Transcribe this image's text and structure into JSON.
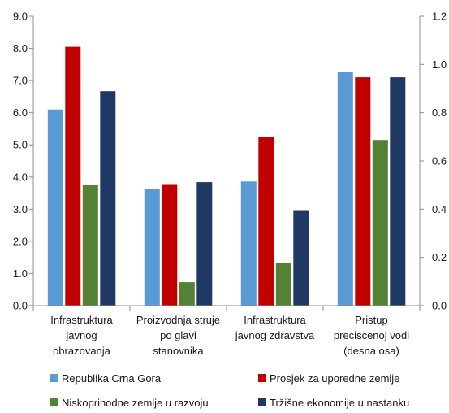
{
  "chart_data": {
    "type": "bar",
    "title": "",
    "xlabel": "",
    "ylabel": "",
    "categories": [
      [
        "Infrastruktura",
        "javnog",
        "obrazovanja"
      ],
      [
        "Proizvodnja struje",
        "po glavi",
        "stanovnika"
      ],
      [
        "Infrastruktura",
        "javnog zdravstva"
      ],
      [
        "Pristup",
        "preciscenoj vodi",
        "(desna osa)"
      ]
    ],
    "series": [
      {
        "name": "Republika Crna Gora",
        "color": "#5b9bd5",
        "values": [
          6.1,
          3.63,
          3.86,
          0.97
        ]
      },
      {
        "name": "Prosjek za uporedne zemlje",
        "color": "#c00000",
        "values": [
          8.05,
          3.78,
          5.25,
          0.947
        ]
      },
      {
        "name": "Niskoprihodne zemlje u razvoju",
        "color": "#548235",
        "values": [
          3.75,
          0.73,
          1.32,
          0.687
        ]
      },
      {
        "name": "Tržišne ekonomije u nastanku",
        "color": "#1f3864",
        "values": [
          6.67,
          3.84,
          2.97,
          0.947
        ]
      }
    ],
    "secondary_axis_categories": [
      3
    ],
    "ylim": [
      0,
      9
    ],
    "y2lim": [
      0,
      1.2
    ],
    "yticks": [
      "0.0",
      "1.0",
      "2.0",
      "3.0",
      "4.0",
      "5.0",
      "6.0",
      "7.0",
      "8.0",
      "9.0"
    ],
    "y2ticks": [
      "0.0",
      "0.2",
      "0.4",
      "0.6",
      "0.8",
      "1.0",
      "1.2"
    ],
    "grid": false,
    "legend_position": "bottom"
  }
}
